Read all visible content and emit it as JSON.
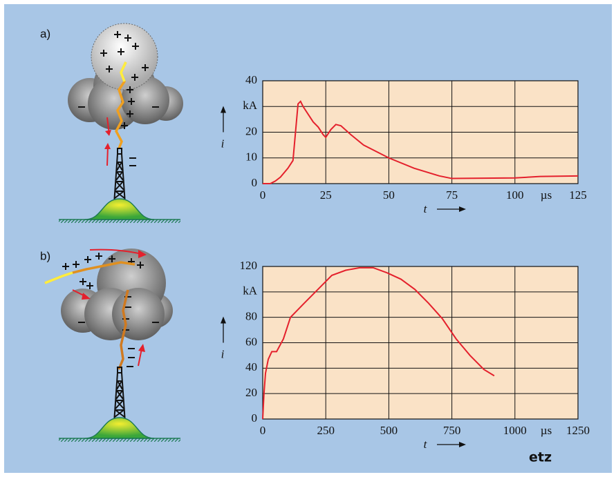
{
  "chart_data": [
    {
      "type": "line",
      "panel_label": "a)",
      "x_label": "t",
      "y_label": "i",
      "x_unit": "µs",
      "x": [
        0,
        3,
        5,
        7,
        10,
        12,
        13,
        14,
        15,
        16,
        18,
        20,
        22,
        24,
        25,
        27,
        29,
        31,
        35,
        40,
        50,
        60,
        70,
        75,
        100,
        110,
        125
      ],
      "series": [
        {
          "color": "#e4202c",
          "values": [
            0,
            0,
            1,
            2.5,
            6,
            9,
            20,
            31,
            32,
            30,
            27,
            24,
            22,
            19,
            18,
            21,
            23,
            22.5,
            19,
            15,
            10,
            6,
            3,
            2,
            2.2,
            2.8,
            3
          ]
        }
      ],
      "xlim": [
        0,
        125
      ],
      "xticks": [
        0,
        25,
        50,
        75,
        100,
        125
      ],
      "ylim": [
        0,
        40
      ],
      "yticks": [
        0,
        10,
        20,
        {
          "value": 30,
          "label": "kA"
        },
        40
      ],
      "grid": true,
      "background": "#fae2c6"
    },
    {
      "type": "line",
      "panel_label": "b)",
      "x_label": "t",
      "y_label": "i",
      "x_unit": "µs",
      "x": [
        0,
        5,
        11,
        22,
        36,
        55,
        82,
        110,
        164,
        219,
        274,
        329,
        384,
        438,
        493,
        548,
        603,
        658,
        712,
        767,
        822,
        877,
        918
      ],
      "series": [
        {
          "color": "#e4202c",
          "values": [
            0,
            20,
            36,
            47,
            53,
            53,
            63,
            80,
            91,
            102,
            113,
            117,
            119,
            119,
            115,
            110,
            102,
            91,
            79,
            63,
            50,
            39,
            34
          ]
        }
      ],
      "xlim": [
        0,
        1250
      ],
      "xticks": [
        0,
        250,
        500,
        750,
        1000,
        1250
      ],
      "ylim": [
        0,
        120
      ],
      "yticks": [
        0,
        20,
        40,
        60,
        80,
        {
          "value": 100,
          "label": "kA"
        },
        120
      ],
      "grid": true,
      "background": "#fae2c6"
    }
  ],
  "footer": {
    "logo": "etz"
  }
}
